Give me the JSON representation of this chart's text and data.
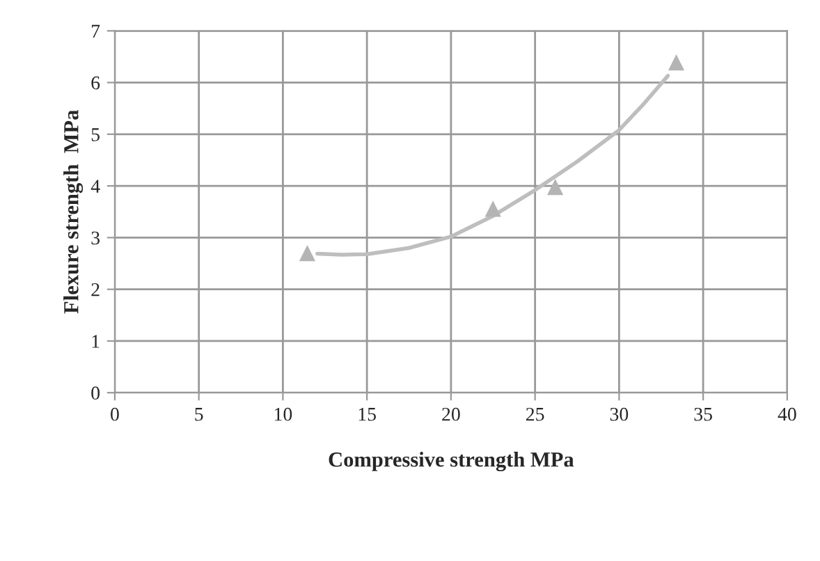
{
  "chart_data": {
    "type": "scatter",
    "xlabel": "Compressive strength MPa",
    "ylabel": "Flexure strength  MPa",
    "xlim": [
      0,
      40
    ],
    "ylim": [
      0,
      7
    ],
    "xticks": [
      0,
      5,
      10,
      15,
      20,
      25,
      30,
      35,
      40
    ],
    "yticks": [
      0,
      1,
      2,
      3,
      4,
      5,
      6,
      7
    ],
    "grid": true,
    "legend": false,
    "series": [
      {
        "color": "#b4b4b4",
        "marker": "triangle",
        "x": [
          11.45,
          22.5,
          26.2,
          33.4
        ],
        "values": [
          2.7,
          3.56,
          3.98,
          6.39
        ]
      },
      {
        "type": "line",
        "color": "#bebebe",
        "marker": "none",
        "line_style": "solid",
        "x": [
          12.05,
          13.5,
          15,
          17.5,
          20,
          22.5,
          25,
          27.5,
          30,
          31.5,
          32.9
        ],
        "values": [
          2.69,
          2.67,
          2.68,
          2.8,
          3.02,
          3.42,
          3.92,
          4.47,
          5.08,
          5.6,
          6.13
        ]
      }
    ]
  }
}
